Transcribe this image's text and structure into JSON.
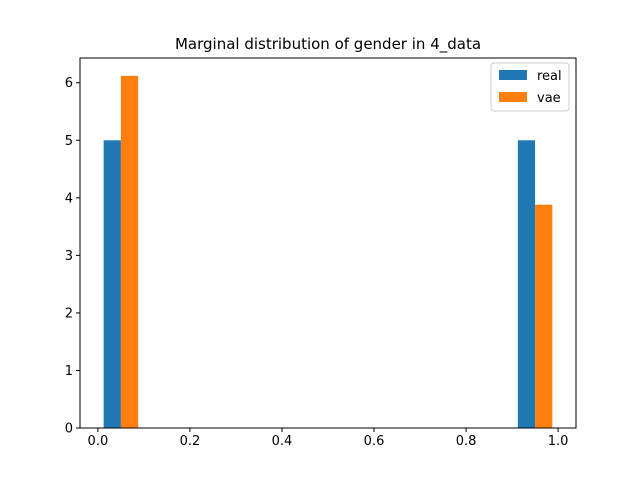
{
  "chart_data": {
    "type": "bar",
    "title": "Marginal distribution of gender in 4_data",
    "xlabel": "",
    "ylabel": "",
    "xlim": [
      -0.0389,
      1.0389
    ],
    "ylim": [
      0,
      6.43
    ],
    "x_ticks": [
      0.0,
      0.2,
      0.4,
      0.6,
      0.8,
      1.0
    ],
    "x_tick_labels": [
      "0.0",
      "0.2",
      "0.4",
      "0.6",
      "0.8",
      "1.0"
    ],
    "y_ticks": [
      0,
      1,
      2,
      3,
      4,
      5,
      6
    ],
    "y_tick_labels": [
      "0",
      "1",
      "2",
      "3",
      "4",
      "5",
      "6"
    ],
    "bins": [
      [
        0.0125,
        0.05
      ],
      [
        0.9125,
        0.95
      ]
    ],
    "bin_width_bars": 0.0375,
    "series": [
      {
        "name": "real",
        "color": "#1f77b4",
        "bars": [
          {
            "x0": 0.0125,
            "x1": 0.05,
            "value": 5.0
          },
          {
            "x0": 0.9125,
            "x1": 0.95,
            "value": 5.0
          }
        ]
      },
      {
        "name": "vae",
        "color": "#ff7f0e",
        "bars": [
          {
            "x0": 0.05,
            "x1": 0.0875,
            "value": 6.12
          },
          {
            "x0": 0.95,
            "x1": 0.9875,
            "value": 3.88
          }
        ]
      }
    ],
    "grid": false,
    "legend_position": "upper-right"
  }
}
